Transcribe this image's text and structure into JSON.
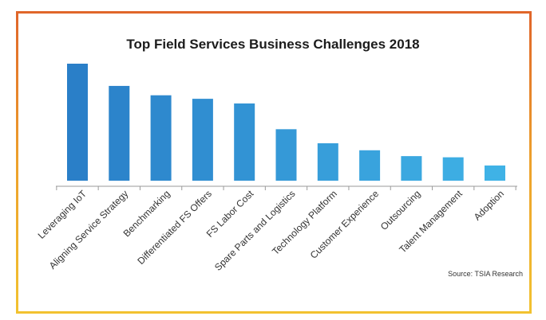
{
  "chart_data": {
    "type": "bar",
    "title": "Top Field Services Business Challenges 2018",
    "categories": [
      "Leveraging IoT",
      "Aligning Service Strategy",
      "Benchmarking",
      "Differentiated FS Offers",
      "FS Labor Cost",
      "Spare Parts and Logistics",
      "Technology Platform",
      "Customer Experience",
      "Outsourcing",
      "Talent Management",
      "Adoption"
    ],
    "values": [
      100,
      81,
      73,
      70,
      66,
      44,
      32,
      26,
      21,
      20,
      13
    ],
    "ylim": [
      0,
      100
    ],
    "grid": false,
    "legend": "none",
    "colors": {
      "bar_top": "#2a7fc8",
      "bar_bottom": "#3fb2e6",
      "axis": "#9a9a9a"
    }
  },
  "source": "Source: TSIA Research",
  "frame_colors": {
    "top": "#e0652a",
    "bottom": "#f2c230"
  }
}
